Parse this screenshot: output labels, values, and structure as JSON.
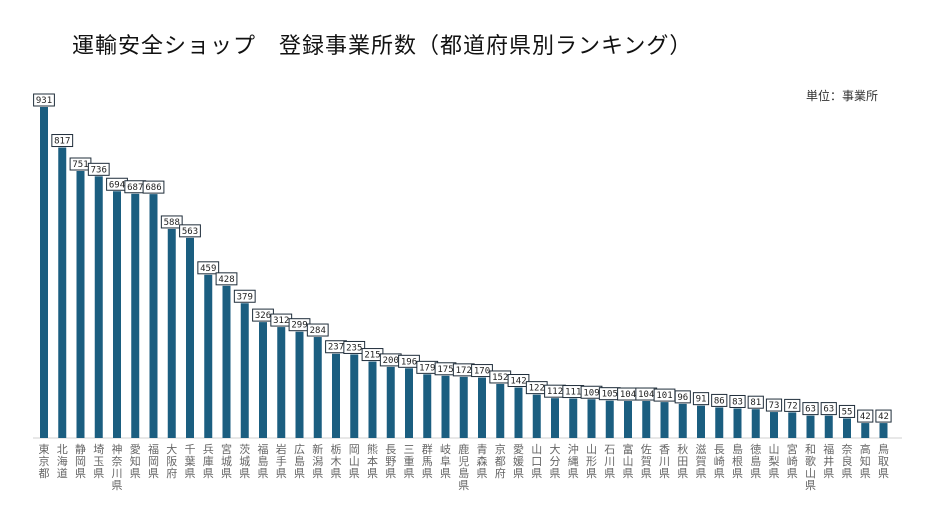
{
  "title": "運輸安全ショップ　登録事業所数（都道府県別ランキング）",
  "unit": "単位：事業所",
  "chart_data": {
    "type": "bar",
    "title": "運輸安全ショップ　登録事業所数（都道府県別ランキング）",
    "unit": "単位：事業所",
    "bar_color": "#1b5e80",
    "categories": [
      "東京都",
      "北海道",
      "静岡県",
      "埼玉県",
      "神奈川県",
      "愛知県",
      "福岡県",
      "大阪府",
      "千葉県",
      "兵庫県",
      "宮城県",
      "茨城県",
      "福島県",
      "岩手県",
      "広島県",
      "新潟県",
      "栃木県",
      "岡山県",
      "熊本県",
      "長野県",
      "三重県",
      "群馬県",
      "岐阜県",
      "鹿児島県",
      "青森県",
      "京都府",
      "愛媛県",
      "山口県",
      "大分県",
      "沖縄県",
      "山形県",
      "石川県",
      "富山県",
      "佐賀県",
      "香川県",
      "秋田県",
      "滋賀県",
      "長崎県",
      "島根県",
      "徳島県",
      "山梨県",
      "宮崎県",
      "和歌山県",
      "福井県",
      "奈良県",
      "高知県",
      "鳥取県"
    ],
    "values": [
      931,
      817,
      751,
      736,
      694,
      687,
      686,
      588,
      563,
      459,
      428,
      379,
      326,
      312,
      299,
      284,
      237,
      235,
      215,
      200,
      196,
      179,
      175,
      172,
      170,
      152,
      142,
      122,
      112,
      111,
      109,
      105,
      104,
      104,
      101,
      96,
      91,
      86,
      83,
      81,
      73,
      72,
      63,
      63,
      55,
      42,
      42
    ],
    "ylim": [
      0,
      931
    ]
  }
}
